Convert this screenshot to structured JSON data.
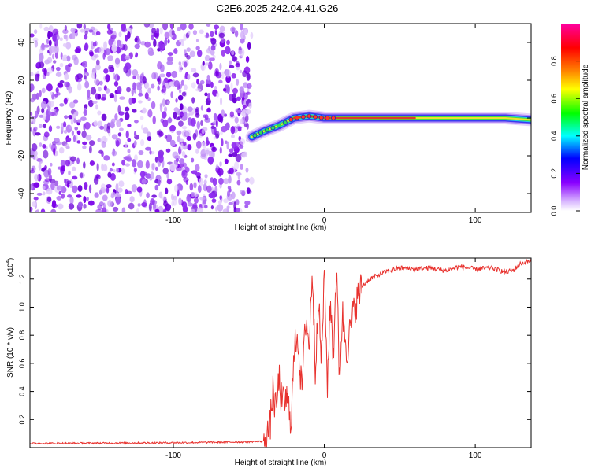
{
  "title": "C2E6.2025.242.04.41.G26",
  "colors": {
    "line": "#e8322e",
    "axis": "#000000",
    "scatter": "#8a2be2",
    "track_core": "#e03a2a"
  },
  "chart_data": [
    {
      "type": "heatmap",
      "title": "C2E6.2025.242.04.41.G26",
      "xlabel": "Height of straight line (km)",
      "ylabel": "Frequency (Hz)",
      "xlim": [
        -195,
        137
      ],
      "ylim": [
        -50,
        50
      ],
      "xticks": [
        -100,
        0,
        100
      ],
      "xtick_labels": [
        "-100",
        "0",
        "100"
      ],
      "yticks": [
        -40,
        -20,
        0,
        20,
        40
      ],
      "ytick_labels": [
        "-40",
        "-20",
        "0",
        "20",
        "40"
      ],
      "description_points": {
        "noise_region_x": [
          -195,
          -48
        ],
        "track_x": [
          -48,
          -40,
          -30,
          -20,
          -10,
          0,
          10,
          20,
          40,
          60,
          80,
          100,
          120,
          137
        ],
        "track_freq": [
          -10,
          -7,
          -4,
          0,
          1,
          0,
          0,
          0,
          0,
          0,
          0,
          0,
          0,
          -1
        ]
      },
      "colorbar": {
        "label": "Normalized spectral amplitude",
        "range": [
          0.0,
          1.0
        ],
        "ticks": [
          0.0,
          0.2,
          0.4,
          0.6,
          0.8
        ],
        "tick_labels": [
          "0.0",
          "0.2",
          "0.4",
          "0.6",
          "0.8"
        ],
        "colormap": [
          "#ffffff",
          "#8a00ff",
          "#0000ff",
          "#00ffff",
          "#00ff00",
          "#ffff00",
          "#ff8000",
          "#ff0000",
          "#ff00a0"
        ]
      }
    },
    {
      "type": "line",
      "xlabel": "Height of straight line (km)",
      "ylabel": "SNR (10 * v/v)",
      "y_multiplier": "(x10",
      "y_multiplier_exp": "4",
      "y_multiplier_close": ")",
      "xlim": [
        -195,
        137
      ],
      "ylim": [
        0,
        13500
      ],
      "xticks": [
        -100,
        0,
        100
      ],
      "xtick_labels": [
        "-100",
        "0",
        "100"
      ],
      "yticks": [
        2000,
        4000,
        6000,
        8000,
        10000,
        12000
      ],
      "ytick_labels": [
        "0.2",
        "0.4",
        "0.6",
        "0.8",
        "1.0",
        "1.2"
      ],
      "series": [
        {
          "name": "SNR",
          "x": [
            -195,
            -150,
            -100,
            -55,
            -40,
            -36,
            -34,
            -32,
            -30,
            -28,
            -25,
            -22,
            -20,
            -18,
            -15,
            -12,
            -10,
            -8,
            -6,
            -4,
            -2,
            0,
            2,
            4,
            6,
            8,
            10,
            12,
            15,
            20,
            25,
            30,
            40,
            50,
            60,
            70,
            80,
            90,
            100,
            110,
            120,
            125,
            130,
            137
          ],
          "y": [
            300,
            320,
            350,
            400,
            450,
            1500,
            4000,
            2500,
            5000,
            3000,
            3500,
            2000,
            6500,
            8500,
            4000,
            9500,
            7000,
            13000,
            5500,
            11000,
            6000,
            12500,
            4500,
            10500,
            6500,
            13000,
            5000,
            9500,
            7000,
            10000,
            11500,
            12000,
            12500,
            12800,
            12700,
            12800,
            12600,
            12900,
            12700,
            12800,
            12500,
            12600,
            13100,
            13300
          ]
        }
      ]
    }
  ]
}
